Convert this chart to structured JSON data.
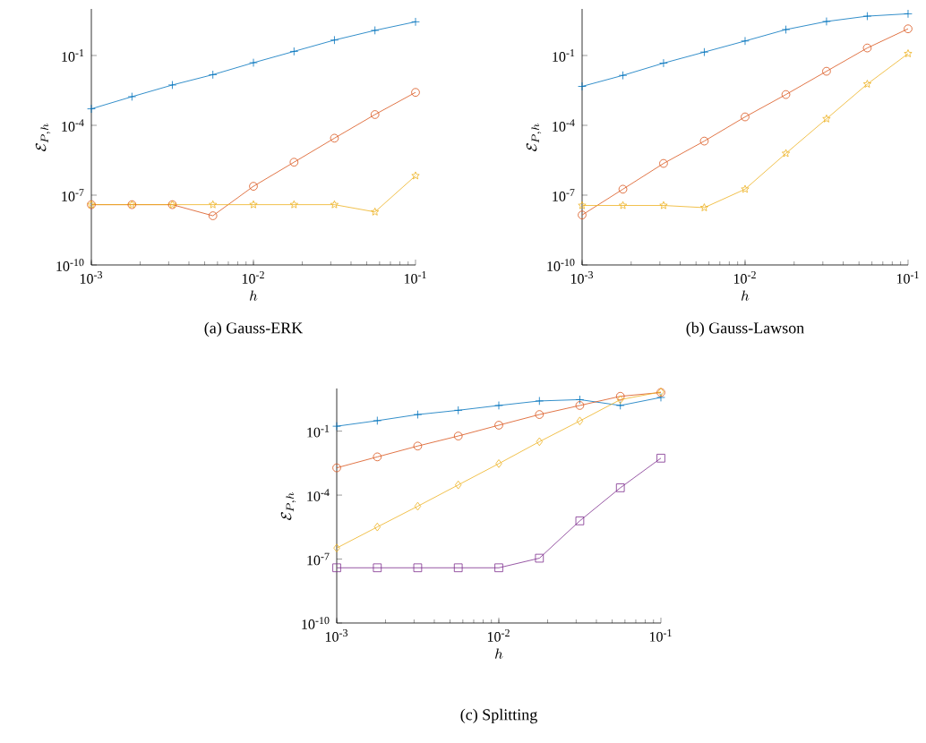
{
  "chart_data": [
    {
      "type": "line",
      "title": "(a) Gauss-ERK",
      "xlabel": "h",
      "ylabel": "\\mathcal{E}_{P,h}",
      "log": "xy",
      "x": [
        0.001,
        0.00178,
        0.00316,
        0.00562,
        0.01,
        0.0178,
        0.0316,
        0.0562,
        0.1
      ],
      "xlim": [
        0.001,
        0.1
      ],
      "ylim": [
        1e-10,
        10
      ],
      "xticks": [
        {
          "value": 0.001,
          "label": "10$^{-3}$"
        },
        {
          "value": 0.01,
          "label": "10$^{-2}$"
        },
        {
          "value": 0.1,
          "label": "10$^{-1}$"
        }
      ],
      "yticks": [
        {
          "value": 1e-10,
          "label": "10$^{-10}$"
        },
        {
          "value": 1e-07,
          "label": "10$^{-7}$"
        },
        {
          "value": 0.0001,
          "label": "10$^{-4}$"
        },
        {
          "value": 0.1,
          "label": "10$^{-1}$"
        }
      ],
      "series": [
        {
          "color": "#0072bd",
          "marker": "cross",
          "values": [
            0.00051,
            0.0017,
            0.0054,
            0.015,
            0.049,
            0.15,
            0.46,
            1.2,
            2.8
          ]
        },
        {
          "color": "#d95319",
          "marker": "circle",
          "values": [
            3.9e-08,
            3.9e-08,
            3.9e-08,
            1.3e-08,
            2.4e-07,
            2.6e-06,
            2.8e-05,
            0.00029,
            0.0026
          ]
        },
        {
          "color": "#edb120",
          "marker": "star",
          "values": [
            3.9e-08,
            3.9e-08,
            3.9e-08,
            3.9e-08,
            3.9e-08,
            3.9e-08,
            3.9e-08,
            1.9e-08,
            6.8e-07
          ]
        }
      ]
    },
    {
      "type": "line",
      "title": "(b) Gauss-Lawson",
      "xlabel": "h",
      "ylabel": "\\mathcal{E}_{P,h}",
      "log": "xy",
      "x": [
        0.001,
        0.00178,
        0.00316,
        0.00562,
        0.01,
        0.0178,
        0.0316,
        0.0562,
        0.1
      ],
      "xlim": [
        0.001,
        0.1
      ],
      "ylim": [
        1e-10,
        10
      ],
      "xticks": [
        {
          "value": 0.001,
          "label": "10$^{-3}$"
        },
        {
          "value": 0.01,
          "label": "10$^{-2}$"
        },
        {
          "value": 0.1,
          "label": "10$^{-1}$"
        }
      ],
      "yticks": [
        {
          "value": 1e-10,
          "label": "10$^{-10}$"
        },
        {
          "value": 1e-07,
          "label": "10$^{-7}$"
        },
        {
          "value": 0.0001,
          "label": "10$^{-4}$"
        },
        {
          "value": 0.1,
          "label": "10$^{-1}$"
        }
      ],
      "series": [
        {
          "color": "#0072bd",
          "marker": "cross",
          "values": [
            0.0047,
            0.014,
            0.047,
            0.14,
            0.42,
            1.3,
            2.9,
            4.9,
            6.2
          ]
        },
        {
          "color": "#d95319",
          "marker": "circle",
          "values": [
            1.4e-08,
            1.8e-07,
            2.3e-06,
            2.1e-05,
            0.00023,
            0.0021,
            0.021,
            0.21,
            1.4
          ]
        },
        {
          "color": "#edb120",
          "marker": "star",
          "values": [
            3.6e-08,
            3.6e-08,
            3.6e-08,
            2.9e-08,
            1.8e-07,
            6.2e-06,
            0.00019,
            0.0059,
            0.12
          ]
        }
      ]
    },
    {
      "type": "line",
      "title": "(c) Splitting",
      "xlabel": "h",
      "ylabel": "\\mathcal{E}_{P,h}",
      "log": "xy",
      "x": [
        0.001,
        0.00178,
        0.00316,
        0.00562,
        0.01,
        0.0178,
        0.0316,
        0.0562,
        0.1
      ],
      "xlim": [
        0.001,
        0.1
      ],
      "ylim": [
        1e-10,
        10
      ],
      "xticks": [
        {
          "value": 0.001,
          "label": "10$^{-3}$"
        },
        {
          "value": 0.01,
          "label": "10$^{-2}$"
        },
        {
          "value": 0.1,
          "label": "10$^{-1}$"
        }
      ],
      "yticks": [
        {
          "value": 1e-10,
          "label": "10$^{-10}$"
        },
        {
          "value": 1e-07,
          "label": "10$^{-7}$"
        },
        {
          "value": 0.0001,
          "label": "10$^{-4}$"
        },
        {
          "value": 0.1,
          "label": "10$^{-1}$"
        }
      ],
      "series": [
        {
          "color": "#0072bd",
          "marker": "cross",
          "values": [
            0.17,
            0.31,
            0.6,
            0.95,
            1.6,
            2.6,
            3.0,
            1.6,
            3.8
          ]
        },
        {
          "color": "#d95319",
          "marker": "circle",
          "values": [
            0.0019,
            0.0062,
            0.02,
            0.059,
            0.19,
            0.6,
            1.6,
            4.3,
            6.5
          ]
        },
        {
          "color": "#edb120",
          "marker": "diamond",
          "values": [
            3.3e-07,
            3.2e-06,
            3e-05,
            0.0003,
            0.003,
            0.032,
            0.3,
            3.0,
            6.9
          ]
        },
        {
          "color": "#7e2f8e",
          "marker": "square",
          "values": [
            3.9e-08,
            3.9e-08,
            3.9e-08,
            3.9e-08,
            3.9e-08,
            1.1e-07,
            6.2e-06,
            0.00022,
            0.0054
          ]
        }
      ]
    }
  ]
}
